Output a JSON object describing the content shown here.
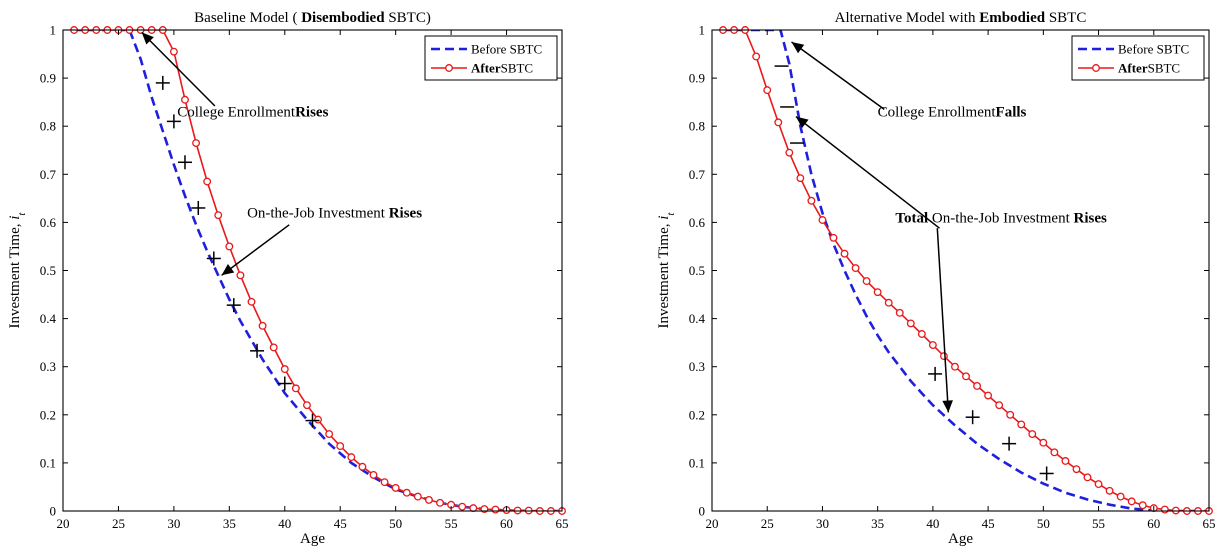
{
  "chart_data": [
    {
      "type": "line",
      "title_parts": [
        {
          "text": "Baseline Model ( ",
          "bold": false
        },
        {
          "text": "Disembodied",
          "bold": true
        },
        {
          "text": "  SBTC)",
          "bold": false
        }
      ],
      "xlabel": "Age",
      "ylabel_parts": [
        {
          "text": "Investment Time,  ",
          "italic": false
        },
        {
          "text": "i",
          "italic": true
        },
        {
          "text": "t",
          "italic": true,
          "sub": true
        }
      ],
      "xlim": [
        20,
        65
      ],
      "ylim": [
        0,
        1
      ],
      "xticks": [
        "20",
        "25",
        "30",
        "35",
        "40",
        "45",
        "50",
        "55",
        "60",
        "65"
      ],
      "yticks": [
        "0",
        "0.1",
        "0.2",
        "0.3",
        "0.4",
        "0.5",
        "0.6",
        "0.7",
        "0.8",
        "0.9",
        "1"
      ],
      "legend_position": "top-right",
      "legend": [
        {
          "parts": [
            {
              "text": "Before SBTC",
              "bold": false
            }
          ],
          "style": "dashed",
          "color": "#1f1fdd"
        },
        {
          "parts": [
            {
              "text": "After",
              "bold": true
            },
            {
              "text": "SBTC",
              "bold": false
            }
          ],
          "style": "solid-circle",
          "color": "#e8191b"
        }
      ],
      "series": [
        {
          "style": "dashed",
          "color": "#1f1fdd",
          "points": [
            [
              21,
              1
            ],
            [
              26,
              1
            ],
            [
              27,
              0.94
            ],
            [
              28,
              0.86
            ],
            [
              29,
              0.79
            ],
            [
              30,
              0.72
            ],
            [
              31,
              0.655
            ],
            [
              32,
              0.595
            ],
            [
              33,
              0.54
            ],
            [
              34,
              0.49
            ],
            [
              35,
              0.44
            ],
            [
              36,
              0.395
            ],
            [
              37,
              0.355
            ],
            [
              38,
              0.315
            ],
            [
              39,
              0.28
            ],
            [
              40,
              0.245
            ],
            [
              42,
              0.19
            ],
            [
              44,
              0.14
            ],
            [
              46,
              0.1
            ],
            [
              48,
              0.07
            ],
            [
              50,
              0.045
            ],
            [
              52,
              0.03
            ],
            [
              54,
              0.017
            ],
            [
              56,
              0.009
            ],
            [
              58,
              0.004
            ],
            [
              60,
              0.001
            ],
            [
              62,
              0
            ],
            [
              65,
              0
            ]
          ]
        },
        {
          "style": "solid-circle",
          "color": "#e8191b",
          "points": [
            [
              21,
              1
            ],
            [
              22,
              1
            ],
            [
              23,
              1
            ],
            [
              24,
              1
            ],
            [
              25,
              1
            ],
            [
              26,
              1
            ],
            [
              27,
              1
            ],
            [
              28,
              1
            ],
            [
              29,
              1
            ],
            [
              30,
              0.955
            ],
            [
              31,
              0.855
            ],
            [
              32,
              0.765
            ],
            [
              33,
              0.685
            ],
            [
              34,
              0.615
            ],
            [
              35,
              0.55
            ],
            [
              36,
              0.49
            ],
            [
              37,
              0.435
            ],
            [
              38,
              0.385
            ],
            [
              39,
              0.34
            ],
            [
              40,
              0.295
            ],
            [
              41,
              0.255
            ],
            [
              42,
              0.22
            ],
            [
              43,
              0.19
            ],
            [
              44,
              0.16
            ],
            [
              45,
              0.135
            ],
            [
              46,
              0.112
            ],
            [
              47,
              0.092
            ],
            [
              48,
              0.075
            ],
            [
              49,
              0.06
            ],
            [
              50,
              0.048
            ],
            [
              51,
              0.038
            ],
            [
              52,
              0.03
            ],
            [
              53,
              0.023
            ],
            [
              54,
              0.017
            ],
            [
              55,
              0.013
            ],
            [
              56,
              0.009
            ],
            [
              57,
              0.006
            ],
            [
              58,
              0.004
            ],
            [
              59,
              0.003
            ],
            [
              60,
              0.002
            ],
            [
              61,
              0.001
            ],
            [
              62,
              0.001
            ],
            [
              63,
              0
            ],
            [
              64,
              0
            ],
            [
              65,
              0
            ]
          ]
        }
      ],
      "markers": [
        {
          "symbol": "+",
          "x": 29.0,
          "y": 0.89
        },
        {
          "symbol": "+",
          "x": 30.0,
          "y": 0.81
        },
        {
          "symbol": "+",
          "x": 31.0,
          "y": 0.725
        },
        {
          "symbol": "+",
          "x": 32.2,
          "y": 0.63
        },
        {
          "symbol": "+",
          "x": 33.6,
          "y": 0.525
        },
        {
          "symbol": "+",
          "x": 35.4,
          "y": 0.428
        },
        {
          "symbol": "+",
          "x": 37.5,
          "y": 0.333
        },
        {
          "symbol": "+",
          "x": 40.0,
          "y": 0.265
        },
        {
          "symbol": "+",
          "x": 42.5,
          "y": 0.188
        }
      ],
      "annotations": [
        {
          "parts": [
            {
              "text": "College Enrollment",
              "bold": false
            },
            {
              "text": "Rises",
              "bold": true
            }
          ],
          "text_at": [
            30.3,
            0.82
          ],
          "arrow_from": [
            33.7,
            0.842
          ],
          "arrow_to": [
            27.1,
            0.995
          ]
        },
        {
          "parts": [
            {
              "text": "On-the-Job Investment  ",
              "bold": false
            },
            {
              "text": "Rises",
              "bold": true
            }
          ],
          "text_at": [
            36.6,
            0.61
          ],
          "arrow_from": [
            40.4,
            0.595
          ],
          "arrow_to": [
            34.3,
            0.49
          ]
        }
      ]
    },
    {
      "type": "line",
      "title_parts": [
        {
          "text": "Alternative Model with  ",
          "bold": false
        },
        {
          "text": "Embodied",
          "bold": true
        },
        {
          "text": "  SBTC",
          "bold": false
        }
      ],
      "xlabel": "Age",
      "ylabel_parts": [
        {
          "text": "Investment Time,  ",
          "italic": false
        },
        {
          "text": "i",
          "italic": true
        },
        {
          "text": "t",
          "italic": true,
          "sub": true
        }
      ],
      "xlim": [
        20,
        65
      ],
      "ylim": [
        0,
        1
      ],
      "xticks": [
        "20",
        "25",
        "30",
        "35",
        "40",
        "45",
        "50",
        "55",
        "60",
        "65"
      ],
      "yticks": [
        "0",
        "0.1",
        "0.2",
        "0.3",
        "0.4",
        "0.5",
        "0.6",
        "0.7",
        "0.8",
        "0.9",
        "1"
      ],
      "legend_position": "top-right",
      "legend": [
        {
          "parts": [
            {
              "text": "Before SBTC",
              "bold": false
            }
          ],
          "style": "dashed",
          "color": "#1f1fdd"
        },
        {
          "parts": [
            {
              "text": "After",
              "bold": true
            },
            {
              "text": "SBTC",
              "bold": false
            }
          ],
          "style": "solid-circle",
          "color": "#e8191b"
        }
      ],
      "series": [
        {
          "style": "dashed",
          "color": "#1f1fdd",
          "points": [
            [
              21,
              1
            ],
            [
              26.2,
              1
            ],
            [
              27,
              0.93
            ],
            [
              28,
              0.8
            ],
            [
              29,
              0.7
            ],
            [
              30,
              0.62
            ],
            [
              31,
              0.555
            ],
            [
              32,
              0.5
            ],
            [
              33,
              0.45
            ],
            [
              34,
              0.405
            ],
            [
              35,
              0.365
            ],
            [
              36,
              0.33
            ],
            [
              37,
              0.3
            ],
            [
              38,
              0.27
            ],
            [
              39,
              0.245
            ],
            [
              40,
              0.22
            ],
            [
              42,
              0.178
            ],
            [
              44,
              0.14
            ],
            [
              46,
              0.108
            ],
            [
              48,
              0.08
            ],
            [
              50,
              0.057
            ],
            [
              52,
              0.038
            ],
            [
              54,
              0.024
            ],
            [
              56,
              0.013
            ],
            [
              58,
              0.005
            ],
            [
              60,
              0.001
            ],
            [
              62,
              0
            ],
            [
              65,
              0
            ]
          ]
        },
        {
          "style": "solid-circle",
          "color": "#e8191b",
          "points": [
            [
              21,
              1
            ],
            [
              22,
              1
            ],
            [
              23,
              1
            ],
            [
              24,
              0.945
            ],
            [
              25,
              0.875
            ],
            [
              26,
              0.808
            ],
            [
              27,
              0.745
            ],
            [
              28,
              0.692
            ],
            [
              29,
              0.645
            ],
            [
              30,
              0.605
            ],
            [
              31,
              0.568
            ],
            [
              32,
              0.535
            ],
            [
              33,
              0.505
            ],
            [
              34,
              0.478
            ],
            [
              35,
              0.455
            ],
            [
              36,
              0.433
            ],
            [
              37,
              0.412
            ],
            [
              38,
              0.39
            ],
            [
              39,
              0.368
            ],
            [
              40,
              0.345
            ],
            [
              41,
              0.322
            ],
            [
              42,
              0.3
            ],
            [
              43,
              0.28
            ],
            [
              44,
              0.26
            ],
            [
              45,
              0.24
            ],
            [
              46,
              0.22
            ],
            [
              47,
              0.2
            ],
            [
              48,
              0.18
            ],
            [
              49,
              0.16
            ],
            [
              50,
              0.142
            ],
            [
              51,
              0.122
            ],
            [
              52,
              0.104
            ],
            [
              53,
              0.087
            ],
            [
              54,
              0.07
            ],
            [
              55,
              0.056
            ],
            [
              56,
              0.042
            ],
            [
              57,
              0.03
            ],
            [
              58,
              0.02
            ],
            [
              59,
              0.012
            ],
            [
              60,
              0.006
            ],
            [
              61,
              0.003
            ],
            [
              62,
              0.001
            ],
            [
              63,
              0
            ],
            [
              64,
              0
            ],
            [
              65,
              0
            ]
          ]
        }
      ],
      "markers": [
        {
          "symbol": "−",
          "x": 26.3,
          "y": 0.925
        },
        {
          "symbol": "−",
          "x": 26.8,
          "y": 0.84
        },
        {
          "symbol": "−",
          "x": 27.7,
          "y": 0.765
        },
        {
          "symbol": "+",
          "x": 40.2,
          "y": 0.285
        },
        {
          "symbol": "+",
          "x": 43.6,
          "y": 0.195
        },
        {
          "symbol": "+",
          "x": 46.9,
          "y": 0.14
        },
        {
          "symbol": "+",
          "x": 50.3,
          "y": 0.078
        }
      ],
      "annotations": [
        {
          "parts": [
            {
              "text": "College Enrollment",
              "bold": false
            },
            {
              "text": "Falls",
              "bold": true
            }
          ],
          "text_at": [
            35.0,
            0.82
          ],
          "arrow_from": [
            35.6,
            0.835
          ],
          "arrow_to": [
            27.2,
            0.975
          ]
        },
        {
          "parts": [
            {
              "text": "Total",
              "bold": true
            },
            {
              "text": " On-the-Job Investment  ",
              "bold": false
            },
            {
              "text": "Rises",
              "bold": true
            }
          ],
          "text_at": [
            36.6,
            0.6
          ],
          "arrow_from_1": [
            40.6,
            0.588
          ],
          "arrow_to_1": [
            27.6,
            0.82
          ],
          "arrow_from_2": [
            40.4,
            0.588
          ],
          "arrow_to_2": [
            41.4,
            0.205
          ]
        }
      ]
    }
  ]
}
